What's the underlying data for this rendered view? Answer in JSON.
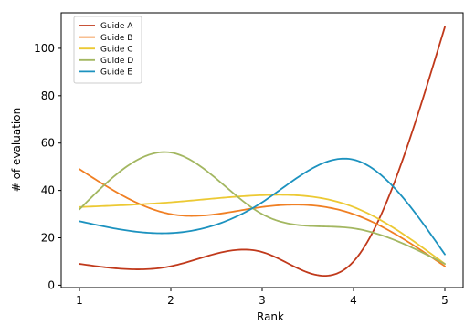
{
  "chart_data": {
    "type": "line",
    "title": "",
    "xlabel": "Rank",
    "ylabel": "# of evaluation",
    "x": [
      1,
      2,
      3,
      4,
      5
    ],
    "xticks": [
      "1",
      "2",
      "3",
      "4",
      "5"
    ],
    "yticks": [
      "0",
      "20",
      "40",
      "60",
      "80",
      "100"
    ],
    "xlim": [
      0.8,
      5.2
    ],
    "ylim": [
      -1,
      115
    ],
    "grid": false,
    "legend_position": "top-left",
    "series": [
      {
        "name": "Guide A",
        "color": "#c0391b",
        "values": [
          9,
          8,
          14,
          10,
          109
        ]
      },
      {
        "name": "Guide B",
        "color": "#f07f23",
        "values": [
          49,
          30,
          33,
          30,
          8
        ]
      },
      {
        "name": "Guide C",
        "color": "#ecc933",
        "values": [
          33,
          35,
          38,
          33,
          9
        ]
      },
      {
        "name": "Guide D",
        "color": "#a3b761",
        "values": [
          32,
          56,
          30,
          24,
          9
        ]
      },
      {
        "name": "Guide E",
        "color": "#1c92bf",
        "values": [
          27,
          22,
          35,
          53,
          13
        ]
      }
    ]
  }
}
